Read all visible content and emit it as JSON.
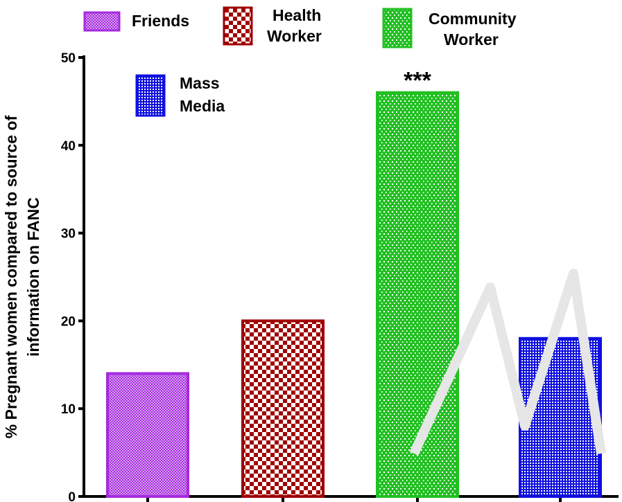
{
  "chart_data": {
    "type": "bar",
    "categories": [
      "Friends",
      "Health Worker",
      "Community Worker",
      "Mass Media"
    ],
    "values": [
      14,
      20,
      46,
      18
    ],
    "colors": [
      "#a52adf",
      "#a00000",
      "#22c022",
      "#1010e0"
    ],
    "legend": [
      {
        "lines": [
          "Friends"
        ]
      },
      {
        "lines": [
          "Health",
          "Worker"
        ]
      },
      {
        "lines": [
          "Community",
          "Worker"
        ]
      },
      {
        "lines": [
          "Mass",
          "Media"
        ]
      }
    ],
    "ylabel_lines": [
      "% Pregnant women compared to source of",
      "information on FANC"
    ],
    "xlabel": "",
    "ylim": [
      0,
      50
    ],
    "yticks": [
      0,
      10,
      20,
      30,
      40,
      50
    ],
    "annotation": {
      "category": "Community Worker",
      "text": "***"
    },
    "grid": false
  }
}
